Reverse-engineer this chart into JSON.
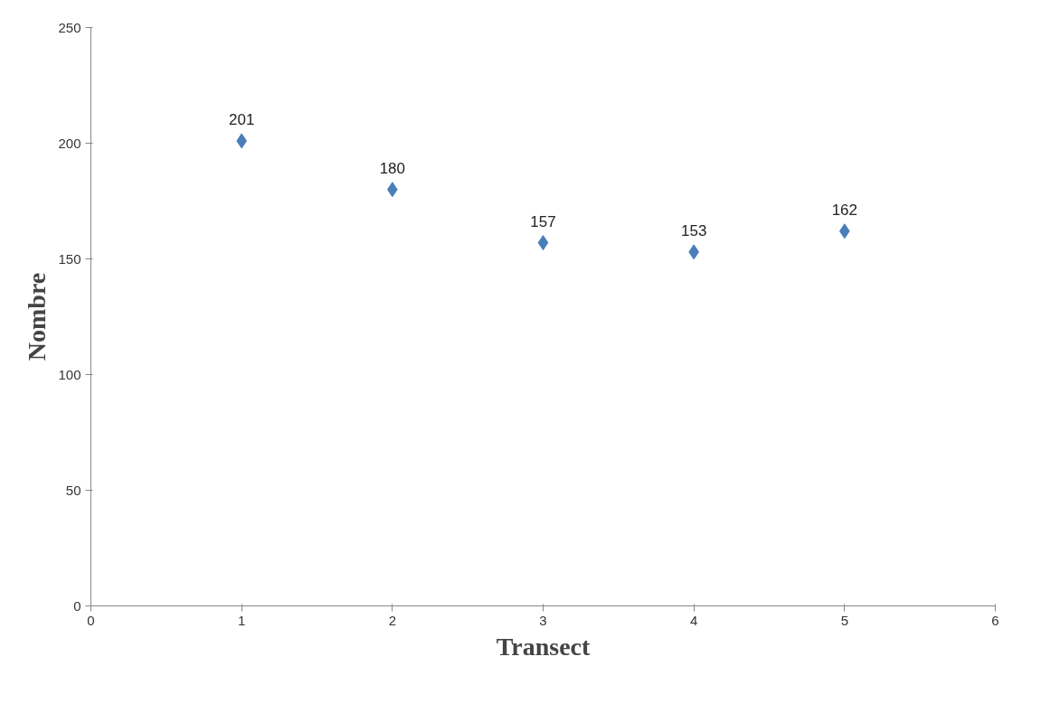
{
  "chart_data": {
    "type": "scatter",
    "xlabel": "Transect",
    "ylabel": "Nombre",
    "x": [
      1,
      2,
      3,
      4,
      5
    ],
    "values": [
      201,
      180,
      157,
      153,
      162
    ],
    "color": "#4a7ebb",
    "marker": "diamond",
    "data_labels": true,
    "grid": false,
    "xlim": [
      0,
      6
    ],
    "xticks": [
      0,
      1,
      2,
      3,
      4,
      5,
      6
    ],
    "ylim": [
      0,
      250
    ],
    "yticks": [
      0,
      50,
      100,
      150,
      200,
      250
    ]
  }
}
